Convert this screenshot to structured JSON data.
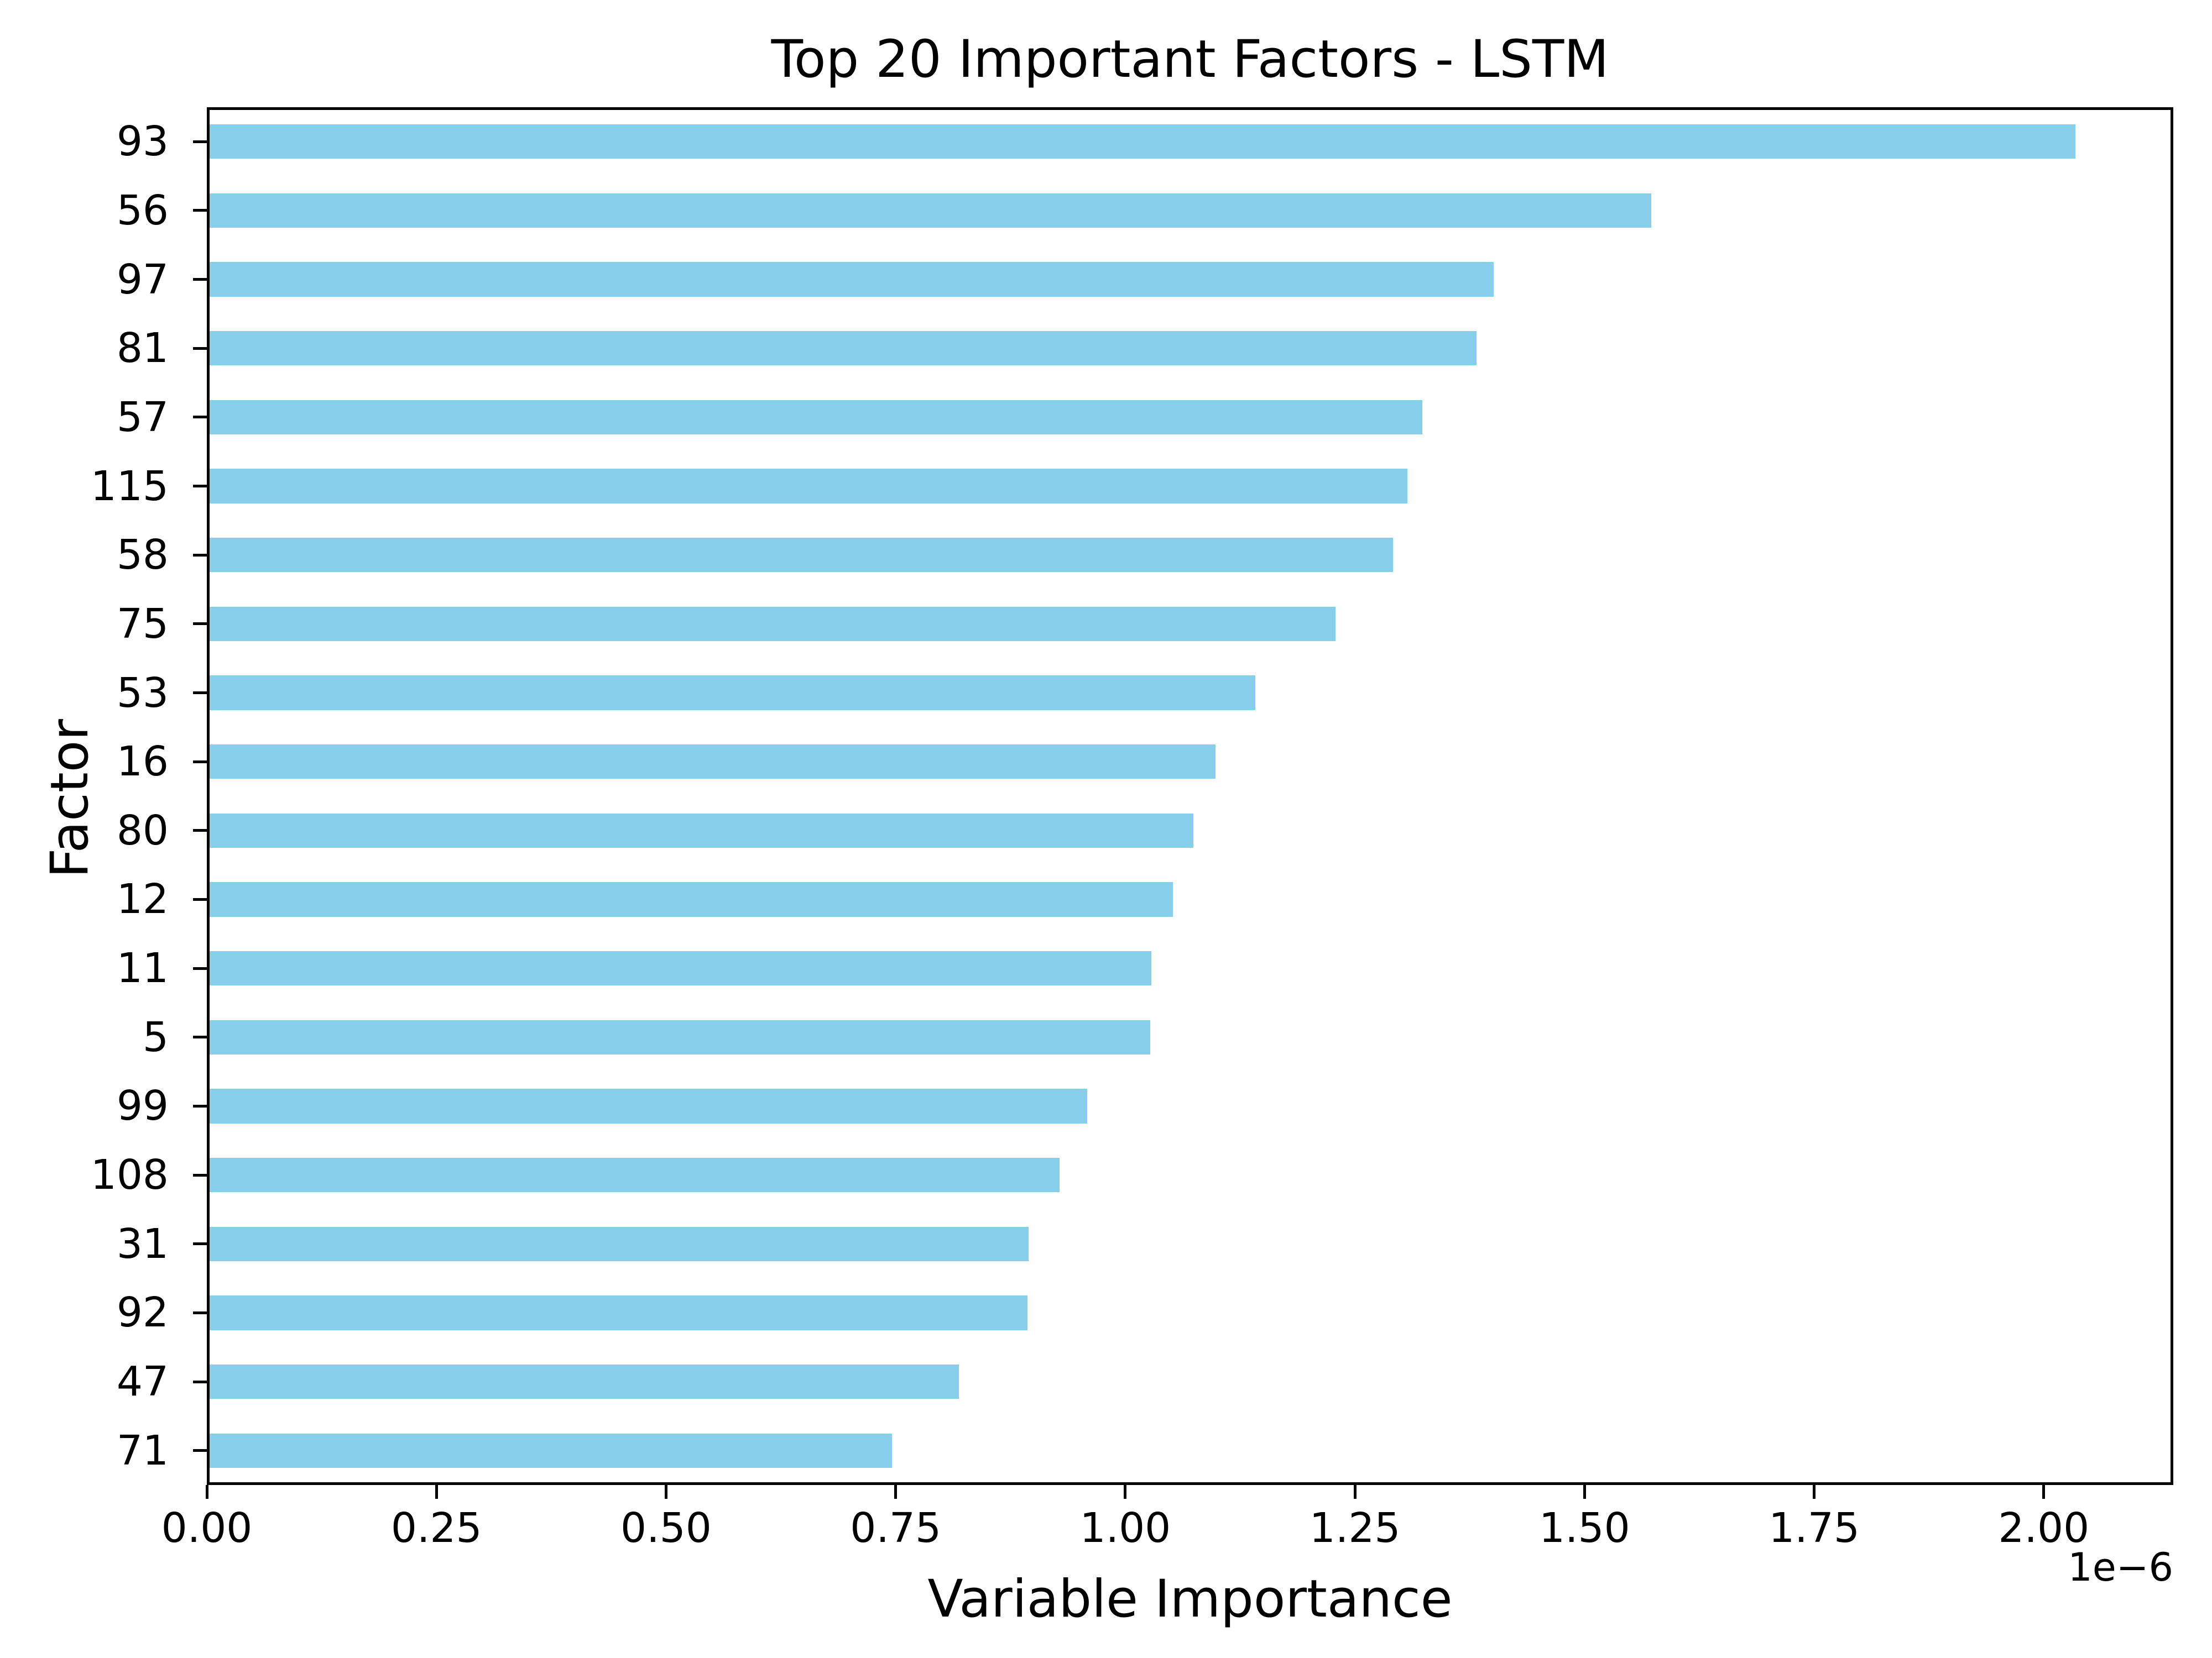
{
  "chart_data": {
    "type": "bar",
    "orientation": "horizontal",
    "title": "Top 20 Important Factors - LSTM",
    "xlabel": "Variable Importance",
    "ylabel": "Factor",
    "x_offset_label": "1e−6",
    "value_scale": "1e-6",
    "categories": [
      "93",
      "56",
      "97",
      "81",
      "57",
      "115",
      "58",
      "75",
      "53",
      "16",
      "80",
      "12",
      "11",
      "5",
      "99",
      "108",
      "31",
      "92",
      "47",
      "71"
    ],
    "values": [
      2.037,
      1.574,
      1.402,
      1.383,
      1.324,
      1.308,
      1.292,
      1.229,
      1.142,
      1.098,
      1.074,
      1.052,
      1.028,
      1.027,
      0.958,
      0.928,
      0.894,
      0.893,
      0.818,
      0.745
    ],
    "x_ticks": [
      {
        "value": 0.0,
        "label": "0.00"
      },
      {
        "value": 0.25,
        "label": "0.25"
      },
      {
        "value": 0.5,
        "label": "0.50"
      },
      {
        "value": 0.75,
        "label": "0.75"
      },
      {
        "value": 1.0,
        "label": "1.00"
      },
      {
        "value": 1.25,
        "label": "1.25"
      },
      {
        "value": 1.5,
        "label": "1.50"
      },
      {
        "value": 1.75,
        "label": "1.75"
      },
      {
        "value": 2.0,
        "label": "2.00"
      }
    ],
    "xlim": [
      0,
      2.141
    ],
    "bar_color": "#87CEEB",
    "axis_color": "#000000",
    "background_color": "#ffffff",
    "grid": false,
    "legend": false
  }
}
